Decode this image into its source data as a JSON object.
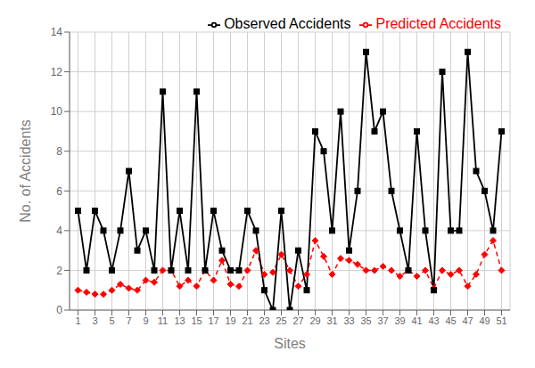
{
  "chart_data": {
    "type": "line",
    "xlabel": "Sites",
    "ylabel": "No. of Accidents",
    "x": [
      1,
      2,
      3,
      4,
      5,
      6,
      7,
      8,
      9,
      10,
      11,
      12,
      13,
      14,
      15,
      16,
      17,
      18,
      19,
      20,
      21,
      22,
      23,
      24,
      25,
      26,
      27,
      28,
      29,
      30,
      31,
      32,
      33,
      34,
      35,
      36,
      37,
      38,
      39,
      40,
      41,
      42,
      43,
      44,
      45,
      46,
      47,
      48,
      49,
      50,
      51
    ],
    "series": [
      {
        "name": "Predicted Accidents",
        "color": "#ff0000",
        "marker": "diamond",
        "line_style": "dashed",
        "values": [
          1.0,
          0.9,
          0.8,
          0.8,
          1.0,
          1.3,
          1.1,
          1.0,
          1.5,
          1.4,
          2.0,
          2.0,
          1.2,
          1.5,
          1.2,
          2.0,
          1.5,
          2.5,
          1.3,
          1.2,
          2.0,
          3.0,
          1.8,
          1.9,
          2.8,
          2.0,
          1.2,
          1.8,
          3.5,
          2.7,
          1.8,
          2.6,
          2.5,
          2.3,
          2.0,
          2.0,
          2.2,
          2.0,
          1.7,
          2.0,
          1.7,
          2.0,
          1.1,
          2.0,
          1.8,
          2.0,
          1.2,
          1.8,
          2.8,
          3.5,
          2.0
        ]
      },
      {
        "name": "Observed Accidents",
        "color": "#000000",
        "marker": "square",
        "line_style": "solid",
        "values": [
          5,
          2,
          5,
          4,
          2,
          4,
          7,
          3,
          4,
          2,
          11,
          2,
          5,
          2,
          11,
          2,
          5,
          3,
          2,
          2,
          5,
          4,
          1,
          0,
          5,
          0,
          3,
          1,
          9,
          8,
          4,
          10,
          3,
          6,
          13,
          9,
          10,
          6,
          4,
          2,
          9,
          4,
          1,
          12,
          4,
          4,
          13,
          7,
          6,
          4,
          9
        ]
      }
    ],
    "xlim": [
      0,
      52
    ],
    "xticks": [
      1,
      3,
      5,
      7,
      9,
      11,
      13,
      15,
      17,
      19,
      21,
      23,
      25,
      27,
      29,
      31,
      33,
      35,
      37,
      39,
      41,
      43,
      45,
      47,
      49,
      51
    ],
    "ylim": [
      0,
      14
    ],
    "yticks": [
      0,
      2,
      4,
      6,
      8,
      10,
      12,
      14
    ],
    "grid": true,
    "legend": "upper right"
  }
}
